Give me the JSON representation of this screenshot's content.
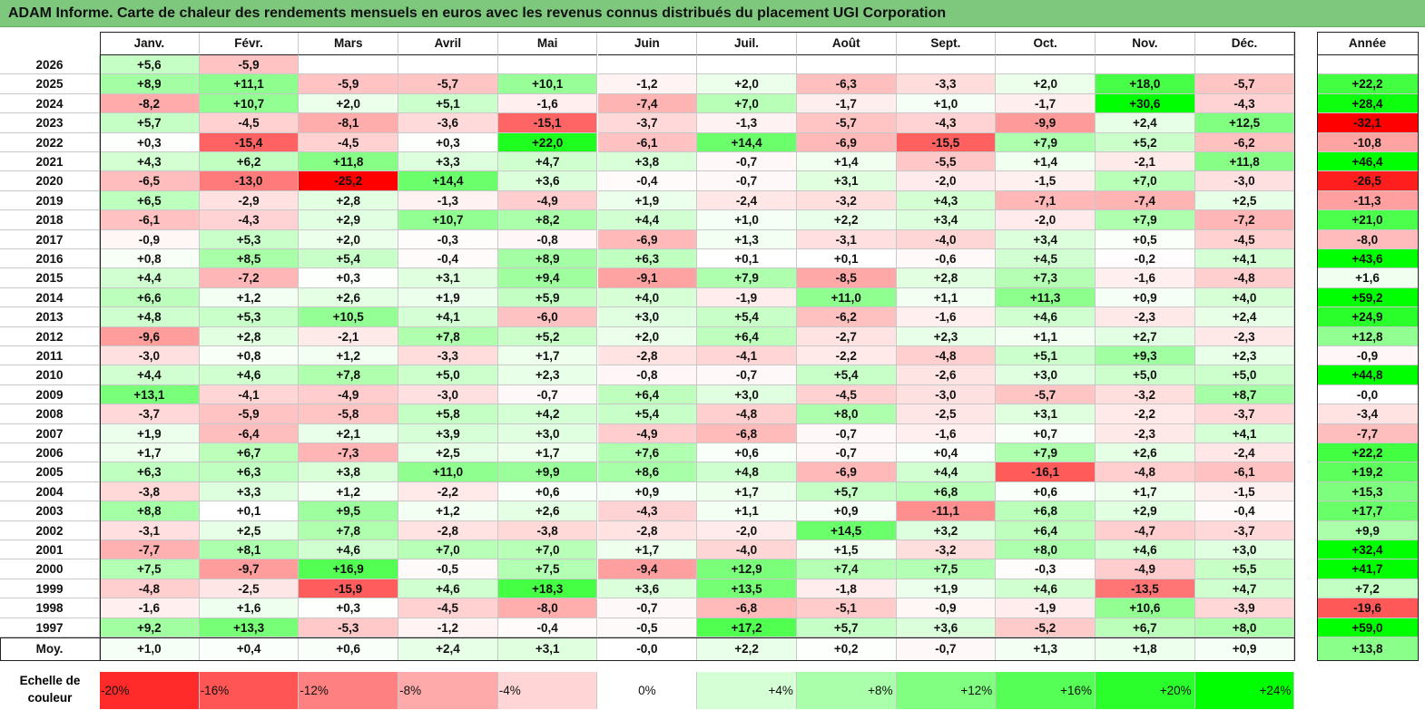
{
  "title": "ADAM Informe. Carte de chaleur des rendements mensuels en euros avec les revenus connus distribués du placement UGI Corporation",
  "chart_data": {
    "type": "heatmap",
    "months": [
      "Janv.",
      "Févr.",
      "Mars",
      "Avril",
      "Mai",
      "Juin",
      "Juil.",
      "Août",
      "Sept.",
      "Oct.",
      "Nov.",
      "Déc."
    ],
    "year_header": "Année",
    "rows": [
      {
        "label": "2026",
        "values": [
          "+5,6",
          "-5,9",
          "",
          "",
          "",
          "",
          "",
          "",
          "",
          "",
          "",
          ""
        ],
        "year": ""
      },
      {
        "label": "2025",
        "values": [
          "+8,9",
          "+11,1",
          "-5,9",
          "-5,7",
          "+10,1",
          "-1,2",
          "+2,0",
          "-6,3",
          "-3,3",
          "+2,0",
          "+18,0",
          "-5,7"
        ],
        "year": "+22,2"
      },
      {
        "label": "2024",
        "values": [
          "-8,2",
          "+10,7",
          "+2,0",
          "+5,1",
          "-1,6",
          "-7,4",
          "+7,0",
          "-1,7",
          "+1,0",
          "-1,7",
          "+30,6",
          "-4,3"
        ],
        "year": "+28,4"
      },
      {
        "label": "2023",
        "values": [
          "+5,7",
          "-4,5",
          "-8,1",
          "-3,6",
          "-15,1",
          "-3,7",
          "-1,3",
          "-5,7",
          "-4,3",
          "-9,9",
          "+2,4",
          "+12,5"
        ],
        "year": "-32,1"
      },
      {
        "label": "2022",
        "values": [
          "+0,3",
          "-15,4",
          "-4,5",
          "+0,3",
          "+22,0",
          "-6,1",
          "+14,4",
          "-6,9",
          "-15,5",
          "+7,9",
          "+5,2",
          "-6,2"
        ],
        "year": "-10,8"
      },
      {
        "label": "2021",
        "values": [
          "+4,3",
          "+6,2",
          "+11,8",
          "+3,3",
          "+4,7",
          "+3,8",
          "-0,7",
          "+1,4",
          "-5,5",
          "+1,4",
          "-2,1",
          "+11,8"
        ],
        "year": "+46,4"
      },
      {
        "label": "2020",
        "values": [
          "-6,5",
          "-13,0",
          "-25,2",
          "+14,4",
          "+3,6",
          "-0,4",
          "-0,7",
          "+3,1",
          "-2,0",
          "-1,5",
          "+7,0",
          "-3,0"
        ],
        "year": "-26,5"
      },
      {
        "label": "2019",
        "values": [
          "+6,5",
          "-2,9",
          "+2,8",
          "-1,3",
          "-4,9",
          "+1,9",
          "-2,4",
          "-3,2",
          "+4,3",
          "-7,1",
          "-7,4",
          "+2,5"
        ],
        "year": "-11,3"
      },
      {
        "label": "2018",
        "values": [
          "-6,1",
          "-4,3",
          "+2,9",
          "+10,7",
          "+8,2",
          "+4,4",
          "+1,0",
          "+2,2",
          "+3,4",
          "-2,0",
          "+7,9",
          "-7,2"
        ],
        "year": "+21,0"
      },
      {
        "label": "2017",
        "values": [
          "-0,9",
          "+5,3",
          "+2,0",
          "-0,3",
          "-0,8",
          "-6,9",
          "+1,3",
          "-3,1",
          "-4,0",
          "+3,4",
          "+0,5",
          "-4,5"
        ],
        "year": "-8,0"
      },
      {
        "label": "2016",
        "values": [
          "+0,8",
          "+8,5",
          "+5,4",
          "-0,4",
          "+8,9",
          "+6,3",
          "+0,1",
          "+0,1",
          "-0,6",
          "+4,5",
          "-0,2",
          "+4,1"
        ],
        "year": "+43,6"
      },
      {
        "label": "2015",
        "values": [
          "+4,4",
          "-7,2",
          "+0,3",
          "+3,1",
          "+9,4",
          "-9,1",
          "+7,9",
          "-8,5",
          "+2,8",
          "+7,3",
          "-1,6",
          "-4,8"
        ],
        "year": "+1,6"
      },
      {
        "label": "2014",
        "values": [
          "+6,6",
          "+1,2",
          "+2,6",
          "+1,9",
          "+5,9",
          "+4,0",
          "-1,9",
          "+11,0",
          "+1,1",
          "+11,3",
          "+0,9",
          "+4,0"
        ],
        "year": "+59,2"
      },
      {
        "label": "2013",
        "values": [
          "+4,8",
          "+5,3",
          "+10,5",
          "+4,1",
          "-6,0",
          "+3,0",
          "+5,4",
          "-6,2",
          "-1,6",
          "+4,6",
          "-2,3",
          "+2,4"
        ],
        "year": "+24,9"
      },
      {
        "label": "2012",
        "values": [
          "-9,6",
          "+2,8",
          "-2,1",
          "+7,8",
          "+5,2",
          "+2,0",
          "+6,4",
          "-2,7",
          "+2,3",
          "+1,1",
          "+2,7",
          "-2,3"
        ],
        "year": "+12,8"
      },
      {
        "label": "2011",
        "values": [
          "-3,0",
          "+0,8",
          "+1,2",
          "-3,3",
          "+1,7",
          "-2,8",
          "-4,1",
          "-2,2",
          "-4,8",
          "+5,1",
          "+9,3",
          "+2,3"
        ],
        "year": "-0,9"
      },
      {
        "label": "2010",
        "values": [
          "+4,4",
          "+4,6",
          "+7,8",
          "+5,0",
          "+2,3",
          "-0,8",
          "-0,7",
          "+5,4",
          "-2,6",
          "+3,0",
          "+5,0",
          "+5,0"
        ],
        "year": "+44,8"
      },
      {
        "label": "2009",
        "values": [
          "+13,1",
          "-4,1",
          "-4,9",
          "-3,0",
          "-0,7",
          "+6,4",
          "+3,0",
          "-4,5",
          "-3,0",
          "-5,7",
          "-3,2",
          "+8,7"
        ],
        "year": "-0,0"
      },
      {
        "label": "2008",
        "values": [
          "-3,7",
          "-5,9",
          "-5,8",
          "+5,8",
          "+4,2",
          "+5,4",
          "-4,8",
          "+8,0",
          "-2,5",
          "+3,1",
          "-2,2",
          "-3,7"
        ],
        "year": "-3,4"
      },
      {
        "label": "2007",
        "values": [
          "+1,9",
          "-6,4",
          "+2,1",
          "+3,9",
          "+3,0",
          "-4,9",
          "-6,8",
          "-0,7",
          "-1,6",
          "+0,7",
          "-2,3",
          "+4,1"
        ],
        "year": "-7,7"
      },
      {
        "label": "2006",
        "values": [
          "+1,7",
          "+6,7",
          "-7,3",
          "+2,5",
          "+1,7",
          "+7,6",
          "+0,6",
          "-0,7",
          "+0,4",
          "+7,9",
          "+2,6",
          "-2,4"
        ],
        "year": "+22,2"
      },
      {
        "label": "2005",
        "values": [
          "+6,3",
          "+6,3",
          "+3,8",
          "+11,0",
          "+9,9",
          "+8,6",
          "+4,8",
          "-6,9",
          "+4,4",
          "-16,1",
          "-4,8",
          "-6,1"
        ],
        "year": "+19,2"
      },
      {
        "label": "2004",
        "values": [
          "-3,8",
          "+3,3",
          "+1,2",
          "-2,2",
          "+0,6",
          "+0,9",
          "+1,7",
          "+5,7",
          "+6,8",
          "+0,6",
          "+1,7",
          "-1,5"
        ],
        "year": "+15,3"
      },
      {
        "label": "2003",
        "values": [
          "+8,8",
          "+0,1",
          "+9,5",
          "+1,2",
          "+2,6",
          "-4,3",
          "+1,1",
          "+0,9",
          "-11,1",
          "+6,8",
          "+2,9",
          "-0,4"
        ],
        "year": "+17,7"
      },
      {
        "label": "2002",
        "values": [
          "-3,1",
          "+2,5",
          "+7,8",
          "-2,8",
          "-3,8",
          "-2,8",
          "-2,0",
          "+14,5",
          "+3,2",
          "+6,4",
          "-4,7",
          "-3,7"
        ],
        "year": "+9,9"
      },
      {
        "label": "2001",
        "values": [
          "-7,7",
          "+8,1",
          "+4,6",
          "+7,0",
          "+7,0",
          "+1,7",
          "-4,0",
          "+1,5",
          "-3,2",
          "+8,0",
          "+4,6",
          "+3,0"
        ],
        "year": "+32,4"
      },
      {
        "label": "2000",
        "values": [
          "+7,5",
          "-9,7",
          "+16,9",
          "-0,5",
          "+7,5",
          "-9,4",
          "+12,9",
          "+7,4",
          "+7,5",
          "-0,3",
          "-4,9",
          "+5,5"
        ],
        "year": "+41,7"
      },
      {
        "label": "1999",
        "values": [
          "-4,8",
          "-2,5",
          "-15,9",
          "+4,6",
          "+18,3",
          "+3,6",
          "+13,5",
          "-1,8",
          "+1,9",
          "+4,6",
          "-13,5",
          "+4,7"
        ],
        "year": "+7,2"
      },
      {
        "label": "1998",
        "values": [
          "-1,6",
          "+1,6",
          "+0,3",
          "-4,5",
          "-8,0",
          "-0,7",
          "-6,8",
          "-5,1",
          "-0,9",
          "-1,9",
          "+10,6",
          "-3,9"
        ],
        "year": "-19,6"
      },
      {
        "label": "1997",
        "values": [
          "+9,2",
          "+13,3",
          "-5,3",
          "-1,2",
          "-0,4",
          "-0,5",
          "+17,2",
          "+5,7",
          "+3,6",
          "-5,2",
          "+6,7",
          "+8,0"
        ],
        "year": "+59,0"
      }
    ],
    "average": {
      "label": "Moy.",
      "values": [
        "+1,0",
        "+0,4",
        "+0,6",
        "+2,4",
        "+3,1",
        "-0,0",
        "+2,2",
        "+0,2",
        "-0,7",
        "+1,3",
        "+1,8",
        "+0,9"
      ],
      "year": "+13,8"
    },
    "scale": {
      "label": [
        "Echelle de",
        "couleur"
      ],
      "steps": [
        "-20%",
        "-16%",
        "-12%",
        "-8%",
        "-4%",
        "0%",
        "+4%",
        "+8%",
        "+12%",
        "+16%",
        "+20%",
        "+24%"
      ]
    },
    "colors": {
      "negative": "#ff0000",
      "neutral": "#ffffff",
      "positive": "#00ff00",
      "title_bg": "#7ec87e"
    }
  }
}
